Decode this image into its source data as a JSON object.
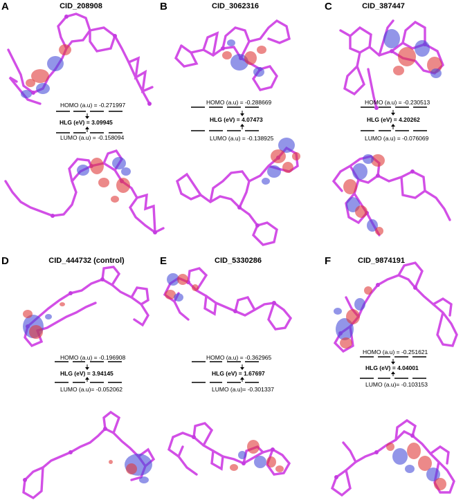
{
  "panels": [
    {
      "letter": "A",
      "cid": "CID_208908",
      "homo_label": "HOMO (a.u) = -0.271997",
      "hlg_label": "HLG (eV) = ",
      "hlg_value": "3.09945",
      "lumo_label": "LUMO (a.u) = -0.158094"
    },
    {
      "letter": "B",
      "cid": "CID_3062316",
      "homo_label": "HOMO (a.u) = -0.288669",
      "hlg_label": "HLG (eV) = ",
      "hlg_value": "4.07473",
      "lumo_label": "LUMO (a.u) = -0.138925"
    },
    {
      "letter": "C",
      "cid": "CID_387447",
      "homo_label": "HOMO (a.u) = -0.230513",
      "hlg_label": "HLG (eV) = ",
      "hlg_value": "4.20262",
      "lumo_label": "LUMO (a.u) = -0.076069"
    },
    {
      "letter": "D",
      "cid": "CID_444732 (control)",
      "homo_label": "HOMO (a.u) = -0.196908",
      "hlg_label": "HLG (eV) = ",
      "hlg_value": "3.94145",
      "lumo_label": "LUMO (a.u)= -0.052062"
    },
    {
      "letter": "E",
      "cid": "CID_5330286",
      "homo_label": "HOMO (a.u) = -0.362965",
      "hlg_label": "HLG (eV) = ",
      "hlg_value": "1.67697",
      "lumo_label": "LUMO (a.u)= -0.301337"
    },
    {
      "letter": "F",
      "cid": "CID_9874191",
      "homo_label": "HOMO (a.u) = -0.251621",
      "hlg_label": "HLG (eV) = ",
      "hlg_value": "4.04001",
      "lumo_label": "LUMO (a.u)= -0.103153"
    }
  ],
  "colors": {
    "molecule_bond": "#d24fe6",
    "molecule_atom": "#c43de0",
    "orbital_positive": "#e03a3a",
    "orbital_negative": "#4a4ed8",
    "energy_level": "#000000"
  }
}
